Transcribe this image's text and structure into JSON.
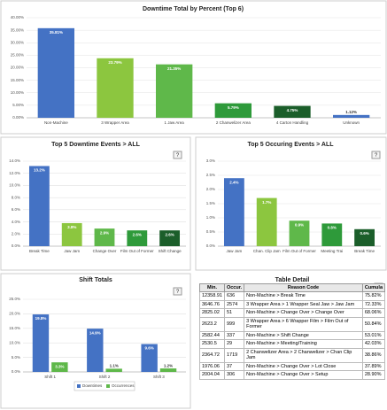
{
  "chart_data": [
    {
      "type": "bar",
      "title": "Downtime Total by Percent (Top 6)",
      "categories": [
        "Non-Machine",
        "3 Wrapper Area",
        "1 Jaw Area",
        "2 Chanwelizer Area",
        "4 Carton Handling",
        "Unknown"
      ],
      "values": [
        35.81,
        23.79,
        21.35,
        5.79,
        4.75,
        1.12
      ],
      "value_labels": [
        "35.81%",
        "23.79%",
        "21.35%",
        "5.79%",
        "4.75%",
        "1.12%"
      ],
      "colors": [
        "#4472c4",
        "#8cc63f",
        "#5fb84a",
        "#2e9a3a",
        "#1b5e2a",
        "#4472c4"
      ],
      "ylim": [
        0,
        40
      ],
      "yticks": [
        {
          "value": 0,
          "label": "0.00%"
        },
        {
          "value": 5,
          "label": "5.00%"
        },
        {
          "value": 10,
          "label": "10.00%"
        },
        {
          "value": 15,
          "label": "15.00%"
        },
        {
          "value": 20,
          "label": "20.00%"
        },
        {
          "value": 25,
          "label": "25.00%"
        },
        {
          "value": 30,
          "label": "30.00%"
        },
        {
          "value": 35,
          "label": "35.00%"
        },
        {
          "value": 40,
          "label": "40.00%"
        }
      ],
      "grid": true
    },
    {
      "type": "bar",
      "title": "Top 5 Downtime Events > ALL",
      "categories": [
        "Break Time",
        "Jaw Jam",
        "Change Over",
        "Film Out of Former",
        "Shift Change"
      ],
      "values": [
        13.2,
        3.8,
        2.9,
        2.6,
        2.6
      ],
      "value_labels": [
        "13.2%",
        "3.8%",
        "2.9%",
        "2.6%",
        "2.6%"
      ],
      "colors": [
        "#4472c4",
        "#8cc63f",
        "#5fb84a",
        "#2e9a3a",
        "#1b5e2a"
      ],
      "ylim": [
        0,
        14
      ],
      "yticks": [
        {
          "value": 0,
          "label": "0.0%"
        },
        {
          "value": 2,
          "label": "2.0%"
        },
        {
          "value": 4,
          "label": "4.0%"
        },
        {
          "value": 6,
          "label": "6.0%"
        },
        {
          "value": 8,
          "label": "8.0%"
        },
        {
          "value": 10,
          "label": "10.0%"
        },
        {
          "value": 12,
          "label": "12.0%"
        },
        {
          "value": 14,
          "label": "14.0%"
        }
      ],
      "grid": true
    },
    {
      "type": "bar",
      "title": "Top 5 Occuring Events > ALL",
      "categories": [
        "Jaw Jam",
        "Chan. Clip Jam",
        "Film Out of Former",
        "Meeting Trai",
        "Break Time"
      ],
      "values": [
        2.4,
        1.7,
        0.9,
        0.8,
        0.6
      ],
      "value_labels": [
        "2.4%",
        "1.7%",
        "0.9%",
        "0.8%",
        "0.6%"
      ],
      "colors": [
        "#4472c4",
        "#8cc63f",
        "#5fb84a",
        "#2e9a3a",
        "#1b5e2a"
      ],
      "ylim": [
        0,
        3
      ],
      "yticks": [
        {
          "value": 0,
          "label": "0.0%"
        },
        {
          "value": 0.5,
          "label": "0.5%"
        },
        {
          "value": 1,
          "label": "1.0%"
        },
        {
          "value": 1.5,
          "label": "1.5%"
        },
        {
          "value": 2,
          "label": "2.0%"
        },
        {
          "value": 2.5,
          "label": "2.5%"
        },
        {
          "value": 3,
          "label": "3.0%"
        }
      ],
      "grid": true
    },
    {
      "type": "grouped_bar",
      "title": "Shift Totals",
      "categories": [
        "Shift 1",
        "Shift 2",
        "Shift 3"
      ],
      "series": [
        {
          "name": "Downtimes",
          "color": "#4472c4",
          "values": [
            19.8,
            14.9,
            9.6
          ],
          "value_labels": [
            "19.8%",
            "14.9%",
            "9.6%"
          ]
        },
        {
          "name": "Occurrences",
          "color": "#5fb84a",
          "values": [
            3.3,
            1.1,
            1.2
          ],
          "value_labels": [
            "3.3%",
            "1.1%",
            "1.2%"
          ]
        }
      ],
      "ylim": [
        0,
        25
      ],
      "yticks": [
        {
          "value": 0,
          "label": "0.0%"
        },
        {
          "value": 5,
          "label": "5.0%"
        },
        {
          "value": 10,
          "label": "10.0%"
        },
        {
          "value": 15,
          "label": "15.0%"
        },
        {
          "value": 20,
          "label": "20.0%"
        },
        {
          "value": 25,
          "label": "25.0%"
        }
      ],
      "grid": true,
      "legend": "bottom"
    }
  ],
  "table": {
    "title": "Table Detail",
    "columns": [
      "Min.",
      "Occur.",
      "Reason Code",
      "Cumula"
    ],
    "rows": [
      [
        "12358.91",
        "636",
        "Non-Machine > Break Time",
        "75.82%"
      ],
      [
        "3646.76",
        "2574",
        "3 Wrapper Area > 1 Wrapper Seal Jaw > Jaw Jam",
        "72.33%"
      ],
      [
        "2825.02",
        "51",
        "Non-Machine > Change Over > Change Over",
        "68.06%"
      ],
      [
        "2623.2",
        "999",
        "3 Wrapper Area > 6 Wrapper Film > Film Out of Former",
        "50.84%"
      ],
      [
        "2582.44",
        "337",
        "Non-Machine > Shift Change",
        "53.01%"
      ],
      [
        "2530.5",
        "29",
        "Non-Machine > Meeting/Training",
        "42.03%"
      ],
      [
        "2364.72",
        "1719",
        "2 Chanwelizer Area > 2 Chanwelizer > Chan Clip Jam",
        "38.86%"
      ],
      [
        "1976.06",
        "37",
        "Non-Machine > Change Over > Lot Close",
        "37.89%"
      ],
      [
        "2004.04",
        "306",
        "Non-Machine > Change Over > Setup",
        "28.90%"
      ]
    ]
  }
}
